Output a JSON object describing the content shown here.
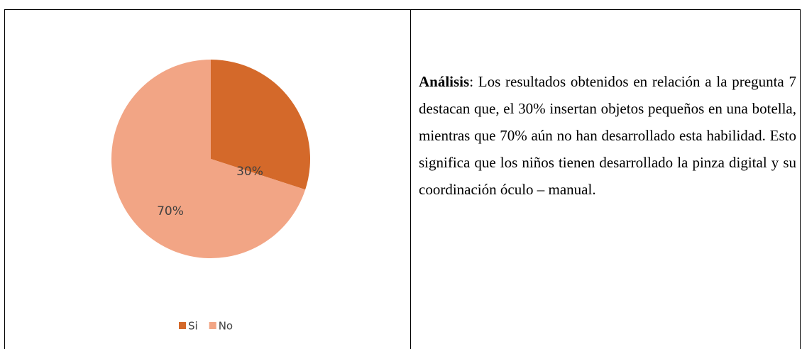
{
  "chart_data": {
    "type": "pie",
    "categories": [
      "Si",
      "No"
    ],
    "values": [
      30,
      70
    ],
    "value_labels": [
      "30%",
      "70%"
    ],
    "colors": [
      "#d4692a",
      "#f2a585"
    ],
    "legend": "bottom"
  },
  "text": {
    "bold": "Análisis",
    "body": ": Los resultados obtenidos en relación a la pregunta 7 destacan que, el 30% insertan objetos pequeños en una botella, mientras que 70% aún no han desarrollado esta habilidad. Esto significa que los niños tienen desarrollado la pinza digital y su coordinación óculo – manual."
  }
}
